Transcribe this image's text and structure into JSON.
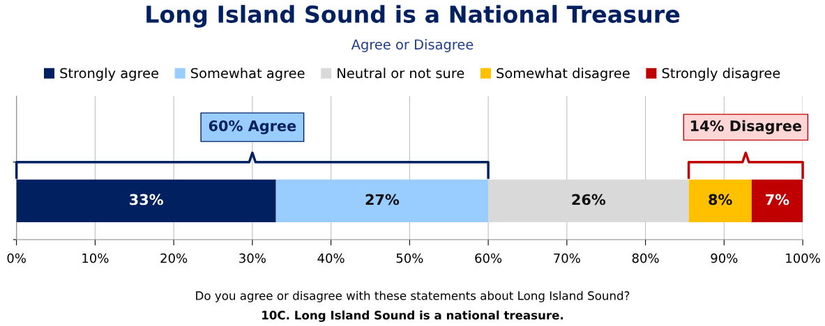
{
  "chart_data": {
    "type": "bar",
    "orientation": "horizontal",
    "stacked": true,
    "title": "Long Island Sound is a National Treasure",
    "subtitle": "Agree or Disagree",
    "categories": [
      null
    ],
    "series": [
      {
        "name": "Strongly agree",
        "color": "#002060",
        "values": [
          33
        ],
        "value_labels": [
          "33%"
        ]
      },
      {
        "name": "Somewhat agree",
        "color": "#99ccff",
        "values": [
          27
        ],
        "value_labels": [
          "27%"
        ]
      },
      {
        "name": "Neutral or not sure",
        "color": "#d9d9d9",
        "values": [
          25.5
        ],
        "value_labels": [
          "26%"
        ]
      },
      {
        "name": "Somewhat disagree",
        "color": "#ffc000",
        "values": [
          8
        ],
        "value_labels": [
          "8%"
        ]
      },
      {
        "name": "Strongly disagree",
        "color": "#c00000",
        "values": [
          6.5
        ],
        "value_labels": [
          "7%"
        ]
      }
    ],
    "xlim": [
      0,
      100
    ],
    "xticks": [
      {
        "value": 0,
        "label": "0%"
      },
      {
        "value": 10,
        "label": "10%"
      },
      {
        "value": 20,
        "label": "20%"
      },
      {
        "value": 30,
        "label": "30%"
      },
      {
        "value": 40,
        "label": "40%"
      },
      {
        "value": 50,
        "label": "50%"
      },
      {
        "value": 60,
        "label": "60%"
      },
      {
        "value": 70,
        "label": "70%"
      },
      {
        "value": 80,
        "label": "80%"
      },
      {
        "value": 90,
        "label": "90%"
      },
      {
        "value": 100,
        "label": "100%"
      }
    ],
    "grid": "x",
    "legend": "top",
    "tick_labels": "x",
    "annotations": [
      "60% Agree",
      "14% Disagree",
      "Do you agree or disagree with these statements about Long Island Sound?",
      "10C. Long Island Sound is a national treasure."
    ]
  }
}
